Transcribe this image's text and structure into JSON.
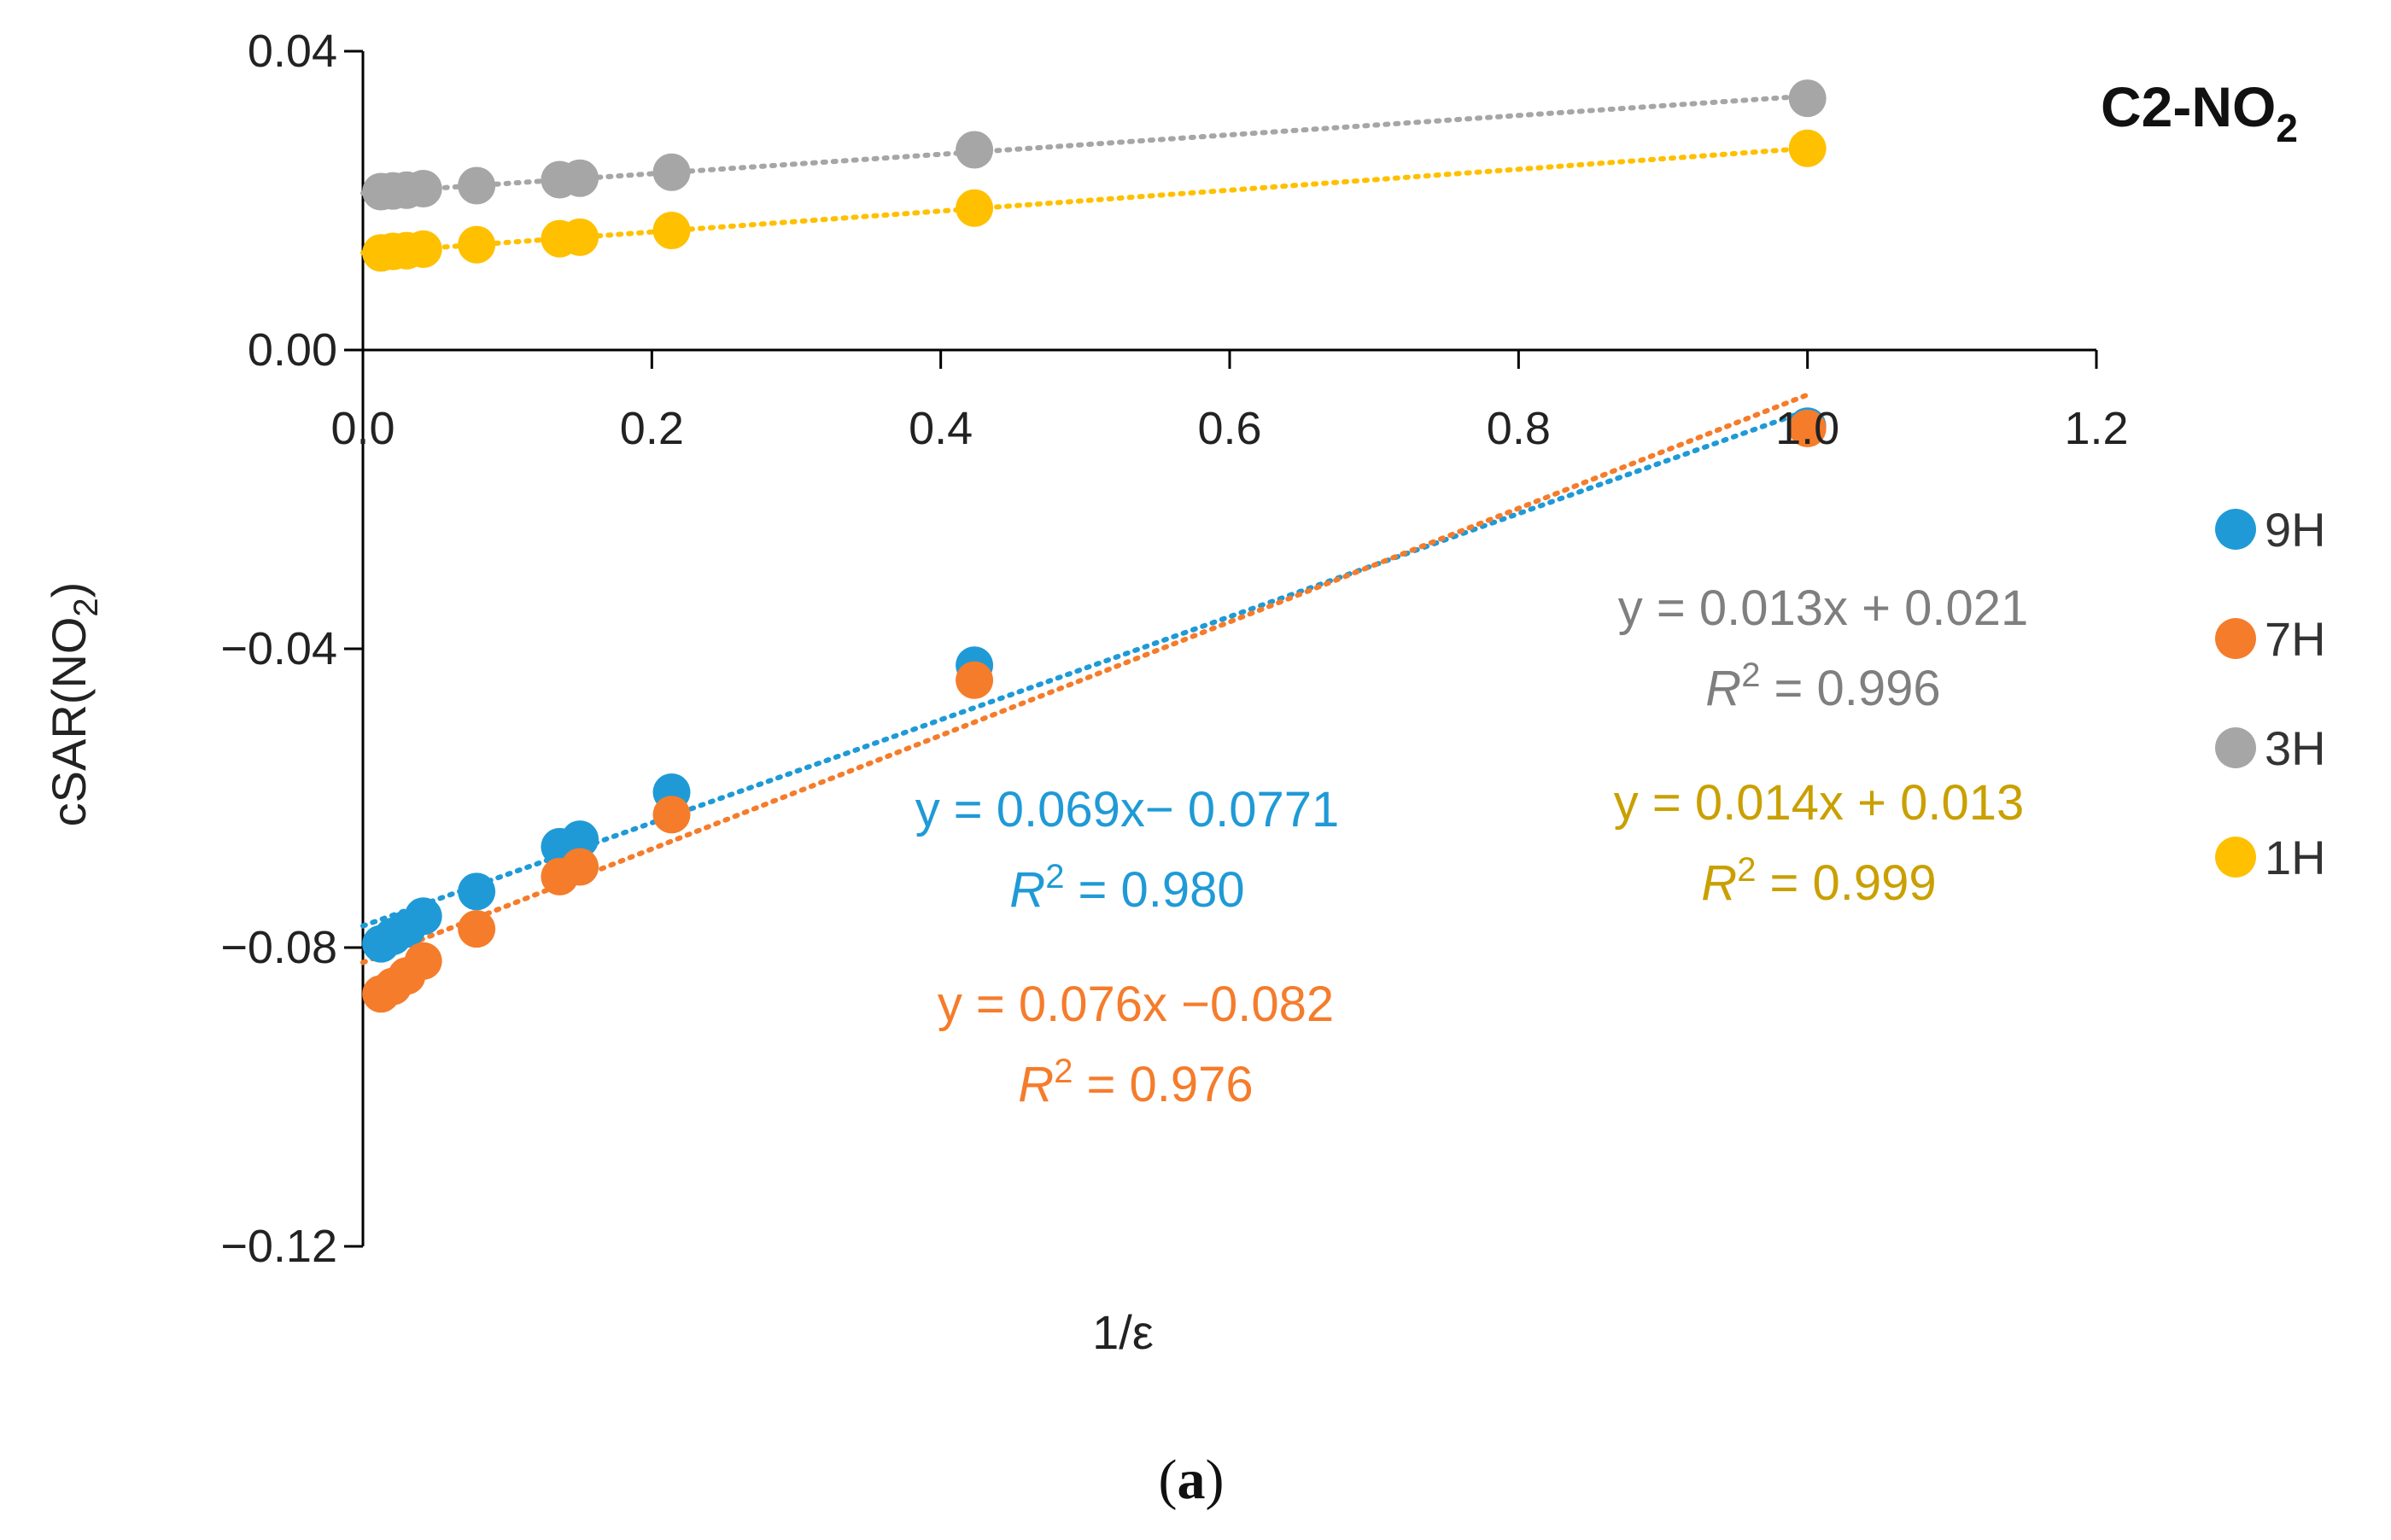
{
  "chart_data": {
    "type": "scatter",
    "title": "C2-NO",
    "title_subscript": "2",
    "xlabel": "1/ε",
    "ylabel": "cSAR(NO",
    "ylabel_subscript": "2",
    "ylabel_close": ")",
    "xlim": [
      0,
      1.2
    ],
    "ylim": [
      -0.12,
      0.04
    ],
    "xticks": [
      "0.0",
      "0.2",
      "0.4",
      "0.6",
      "0.8",
      "1.0",
      "1.2"
    ],
    "yticks": [
      "0.04",
      "0.00",
      "−0.04",
      "−0.08",
      "−0.12"
    ],
    "grid": false,
    "legend_position": "right",
    "series": [
      {
        "name": "9H",
        "color": "#1f9ad6",
        "x": [
          0.0125,
          0.0208,
          0.0303,
          0.0418,
          0.0787,
          0.1362,
          0.1502,
          0.2137,
          0.4233,
          1.0
        ],
        "y": [
          -0.0795,
          -0.0785,
          -0.0775,
          -0.0758,
          -0.0725,
          -0.0665,
          -0.0655,
          -0.0592,
          -0.0422,
          -0.0102
        ],
        "trend": {
          "slope": 0.069,
          "intercept": -0.0771
        }
      },
      {
        "name": "7H",
        "color": "#f57c2b",
        "x": [
          0.0125,
          0.0208,
          0.0303,
          0.0418,
          0.0787,
          0.1362,
          0.1502,
          0.2137,
          0.4233,
          1.0
        ],
        "y": [
          -0.0862,
          -0.0852,
          -0.0838,
          -0.0818,
          -0.0775,
          -0.0705,
          -0.0692,
          -0.0622,
          -0.0442,
          -0.0105
        ],
        "trend": {
          "slope": 0.076,
          "intercept": -0.082
        }
      },
      {
        "name": "3H",
        "color": "#a6a6a6",
        "x": [
          0.0125,
          0.0208,
          0.0303,
          0.0418,
          0.0787,
          0.1362,
          0.1502,
          0.2137,
          0.4233,
          1.0
        ],
        "y": [
          0.0212,
          0.0213,
          0.0214,
          0.0216,
          0.022,
          0.0228,
          0.023,
          0.0238,
          0.0268,
          0.0337
        ],
        "trend": {
          "slope": 0.013,
          "intercept": 0.021
        }
      },
      {
        "name": "1H",
        "color": "#ffc000",
        "x": [
          0.0125,
          0.0208,
          0.0303,
          0.0418,
          0.0787,
          0.1362,
          0.1502,
          0.2137,
          0.4233,
          1.0
        ],
        "y": [
          0.013,
          0.0132,
          0.0133,
          0.0135,
          0.0141,
          0.0149,
          0.0151,
          0.016,
          0.019,
          0.027
        ],
        "trend": {
          "slope": 0.014,
          "intercept": 0.013
        }
      }
    ],
    "annotations": [
      {
        "series": "9H",
        "equation": "y = 0.069x− 0.0771",
        "r2_value": " = 0.980",
        "color": "#1f9ad6"
      },
      {
        "series": "7H",
        "equation": "y = 0.076x −0.082",
        "r2_value": " = 0.976",
        "color": "#f57c2b"
      },
      {
        "series": "3H",
        "equation": "y = 0.013x + 0.021",
        "r2_value": " = 0.996",
        "color": "#7f7f7f"
      },
      {
        "series": "1H",
        "equation": "y = 0.014x + 0.013",
        "r2_value": " = 0.999",
        "color": "#c9a000"
      }
    ],
    "r2_symbol": "R",
    "r2_superscript": "2"
  },
  "caption": {
    "open": "(",
    "letter": "a",
    "close": ")"
  }
}
